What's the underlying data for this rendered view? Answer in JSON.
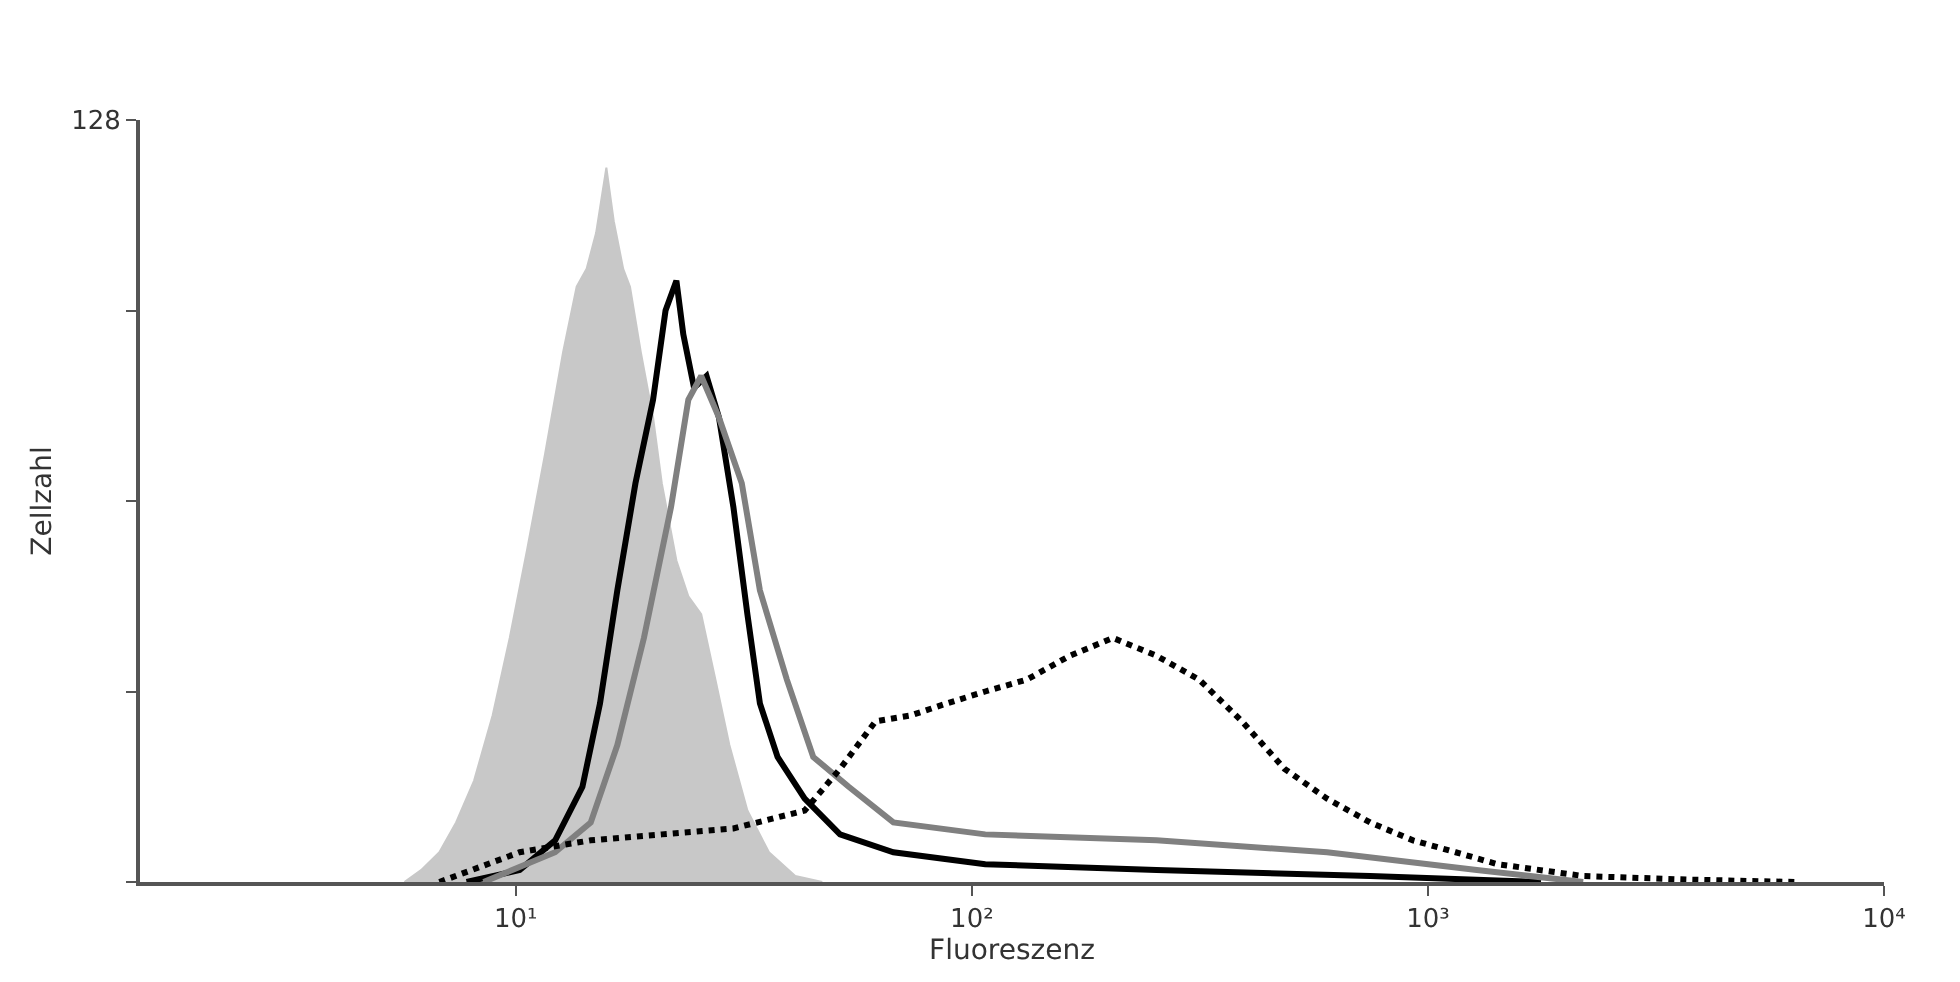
{
  "chart_data": {
    "type": "line",
    "xlabel": "Fluoreszenz",
    "ylabel": "Zellzahl",
    "log": "x",
    "legend": false,
    "xlim": [
      1.5,
      10000
    ],
    "xticks": [
      {
        "value": 10,
        "label": "10¹"
      },
      {
        "value": 100,
        "label": "10²"
      },
      {
        "value": 1000,
        "label": "10³"
      },
      {
        "value": 10000,
        "label": "10⁴"
      }
    ],
    "ylim": [
      0,
      128
    ],
    "yticks": [
      {
        "value": 0,
        "label": null
      },
      {
        "value": 32,
        "label": null
      },
      {
        "value": 64,
        "label": null
      },
      {
        "value": 96,
        "label": null
      },
      128
    ],
    "series": [
      {
        "type": "area",
        "color": "#c8c8c8",
        "x": [
          5.7,
          6.2,
          6.8,
          7.4,
          8.1,
          8.9,
          9.7,
          10.6,
          11.6,
          12.7,
          13.6,
          14.3,
          15.0,
          15.8,
          16.4,
          17.2,
          17.8,
          18.8,
          20.0,
          20.9,
          22.5,
          23.9,
          25.5,
          27.4,
          29.4,
          32.2,
          35.9,
          41.0,
          47.0
        ],
        "values": [
          0,
          2,
          5,
          10,
          17,
          28,
          41,
          56,
          72,
          89,
          100,
          103,
          109,
          120,
          111,
          103,
          100,
          89,
          78,
          67,
          54,
          48,
          45,
          34,
          23,
          12,
          5,
          1,
          0
        ]
      },
      {
        "color": "#000000",
        "line_style": "solid",
        "x": [
          7.8,
          10.2,
          12.2,
          14.0,
          15.3,
          16.7,
          18.3,
          20.0,
          21.3,
          22.5,
          23.3,
          24.6,
          26.2,
          27.9,
          30.0,
          32.2,
          34.3,
          37.5,
          43.0,
          51.4,
          67.3,
          107,
          254,
          747,
          1770
        ],
        "values": [
          0,
          2,
          7,
          16,
          30,
          49,
          67,
          81,
          96,
          101,
          92,
          83,
          85,
          78,
          63,
          45,
          30,
          21,
          14,
          8,
          5,
          3,
          2,
          1,
          0
        ]
      },
      {
        "color": "#808080",
        "line_style": "solid",
        "x": [
          8.5,
          12.2,
          14.6,
          16.7,
          19.1,
          21.9,
          23.9,
          25.5,
          27.9,
          31.3,
          34.3,
          39.3,
          44.9,
          53.7,
          67.3,
          107,
          254,
          601,
          1280,
          2190
        ],
        "values": [
          0,
          5,
          10,
          23,
          41,
          63,
          81,
          85,
          78,
          67,
          49,
          34,
          21,
          16,
          10,
          8,
          7,
          5,
          2,
          0
        ]
      },
      {
        "color": "#000000",
        "line_style": "dotted",
        "x": [
          6.8,
          10.2,
          14.6,
          20.9,
          30.0,
          43.0,
          51.4,
          61.5,
          73.6,
          88.1,
          107,
          132,
          164,
          204,
          254,
          315,
          391,
          485,
          601,
          747,
          927,
          1150,
          1420,
          2190,
          3730,
          6380
        ],
        "values": [
          0,
          5,
          7,
          8,
          9,
          12,
          19,
          27,
          28,
          30,
          32,
          34,
          38,
          41,
          38,
          34,
          27,
          19,
          14,
          10,
          7,
          5,
          3,
          1,
          0.4,
          0
        ]
      }
    ]
  }
}
